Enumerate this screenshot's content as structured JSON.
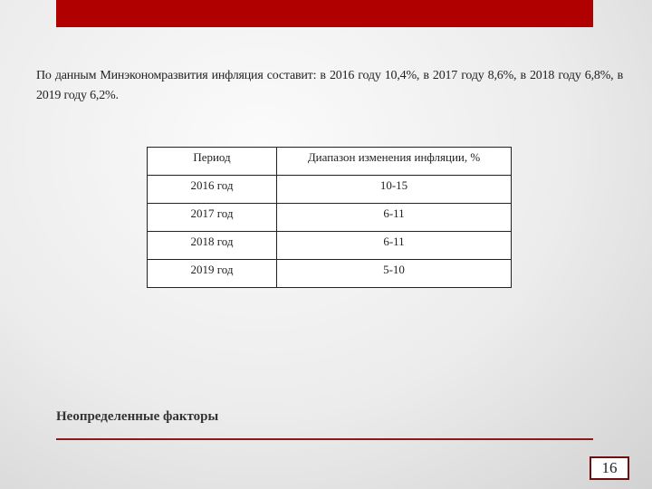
{
  "slide": {
    "paragraph": "По данным Минэкономразвития инфляция составит: в 2016 году 10,4%, в 2017 году 8,6%, в 2018 году 6,8%, в 2019 году 6,2%.",
    "table": {
      "headers": [
        "Период",
        "Диапазон изменения инфляции, %"
      ],
      "rows": [
        [
          "2016 год",
          "10-15"
        ],
        [
          "2017 год",
          "6-11"
        ],
        [
          "2018 год",
          "6-11"
        ],
        [
          "2019 год",
          "5-10"
        ]
      ]
    },
    "footer_title": "Неопределенные факторы",
    "page_number": "16",
    "colors": {
      "accent": "#b00000",
      "rule": "#8b1a1a"
    }
  }
}
